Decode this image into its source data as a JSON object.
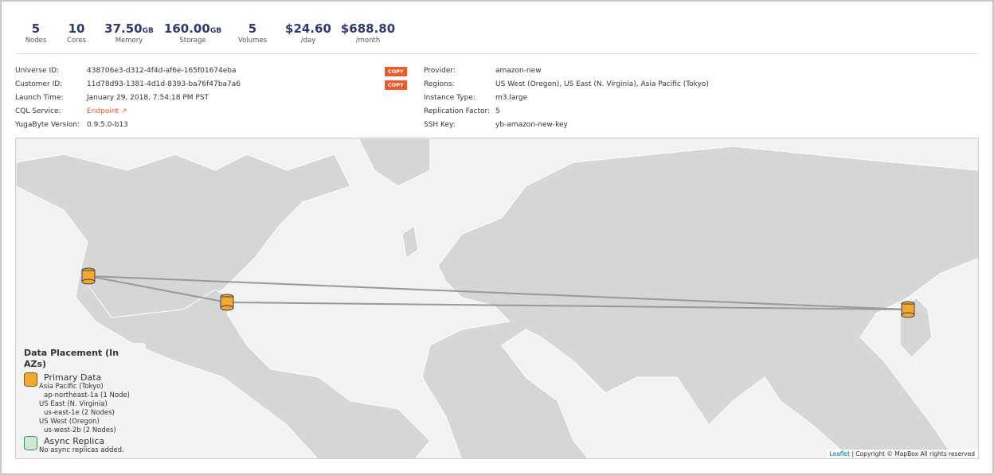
{
  "stats": [
    {
      "value": "5",
      "unit": "",
      "label": "Nodes"
    },
    {
      "value": "10",
      "unit": "",
      "label": "Cores"
    },
    {
      "value": "37.50",
      "unit": "GB",
      "label": "Memory"
    },
    {
      "value": "160.00",
      "unit": "GB",
      "label": "Storage"
    },
    {
      "value": "5",
      "unit": "",
      "label": "Volumes"
    },
    {
      "value": "$24.60",
      "unit": "",
      "label": "/day"
    },
    {
      "value": "$688.80",
      "unit": "",
      "label": "/month"
    }
  ],
  "left_info": [
    {
      "label": "Universe ID:",
      "value": "438706e3-d312-4f4d-af6e-165f01674eba"
    },
    {
      "label": "Customer ID:",
      "value": "11d78d93-1381-4d1d-8393-ba76f47ba7a6"
    },
    {
      "label": "Launch Time:",
      "value": "January 29, 2018, 7:54:18 PM PST"
    },
    {
      "label": "CQL Service:",
      "value": "Endpoint"
    },
    {
      "label": "YugaByte Version:",
      "value": "0.9.5.0-b13"
    }
  ],
  "copy_label": "COPY",
  "right_info": [
    {
      "label": "Provider:",
      "value": "amazon-new"
    },
    {
      "label": "Regions:",
      "value": "US West (Oregon), US East (N. Virginia), Asia Pacific (Tokyo)"
    },
    {
      "label": "Instance Type:",
      "value": "m3.large"
    },
    {
      "label": "Replication Factor:",
      "value": "5"
    },
    {
      "label": "SSH Key:",
      "value": "yb-amazon-new-key"
    }
  ],
  "legend": {
    "title": "Data Placement (In AZs)",
    "primary_title": "Primary Data",
    "regions": [
      {
        "region": "Asia Pacific (Tokyo)",
        "az": "ap-northeast-1a (1 Node)"
      },
      {
        "region": "US East (N. Virginia)",
        "az": "us-east-1e (2 Nodes)"
      },
      {
        "region": "US West (Oregon)",
        "az": "us-west-2b (2 Nodes)"
      }
    ],
    "async_title": "Async Replica",
    "async_text": "No async replicas added."
  },
  "attribution": {
    "leaflet": "Leaflet",
    "copyright": "| Copyright © MapBox All rights reserved"
  },
  "colors": {
    "accent": "#ef5a2b",
    "stat": "#2f3a6b",
    "marker": "#f0a830"
  }
}
